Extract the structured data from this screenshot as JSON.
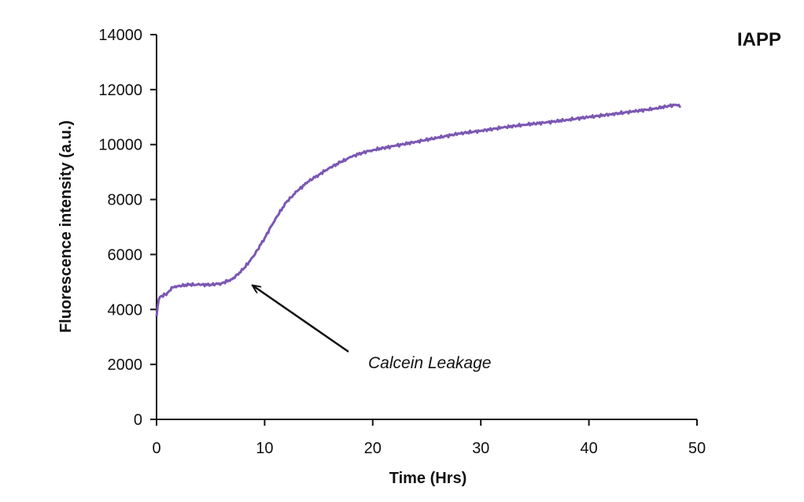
{
  "chart_data": {
    "type": "line",
    "title": "IAPP",
    "xlabel": "Time (Hrs)",
    "ylabel": "Fluorescence intensity (a.u.)",
    "xlim": [
      0,
      50
    ],
    "ylim": [
      0,
      14000
    ],
    "x_ticks": [
      0,
      10,
      20,
      30,
      40,
      50
    ],
    "y_ticks": [
      0,
      2000,
      4000,
      6000,
      8000,
      10000,
      12000,
      14000
    ],
    "grid": false,
    "series": [
      {
        "color": "#7b57b3",
        "x": [
          0,
          0.1,
          0.2,
          0.3,
          0.5,
          0.8,
          1.0,
          1.5,
          2,
          3,
          4,
          5,
          6,
          7,
          8,
          9,
          10,
          11,
          12,
          13,
          14,
          15,
          16,
          17,
          18,
          19,
          20,
          22,
          24,
          26,
          28,
          30,
          32,
          34,
          36,
          38,
          40,
          42,
          44,
          46,
          48,
          48.5
        ],
        "y": [
          3750,
          4100,
          4350,
          4450,
          4500,
          4550,
          4600,
          4800,
          4850,
          4900,
          4900,
          4900,
          4950,
          5100,
          5450,
          5950,
          6600,
          7300,
          7900,
          8300,
          8650,
          8900,
          9150,
          9350,
          9550,
          9700,
          9800,
          9950,
          10100,
          10250,
          10400,
          10500,
          10620,
          10720,
          10800,
          10900,
          11000,
          11100,
          11200,
          11300,
          11450,
          11400
        ]
      }
    ],
    "annotations": [
      {
        "text": "Calcein Leakage",
        "arrow_to": [
          8.7,
          4950
        ]
      }
    ]
  }
}
